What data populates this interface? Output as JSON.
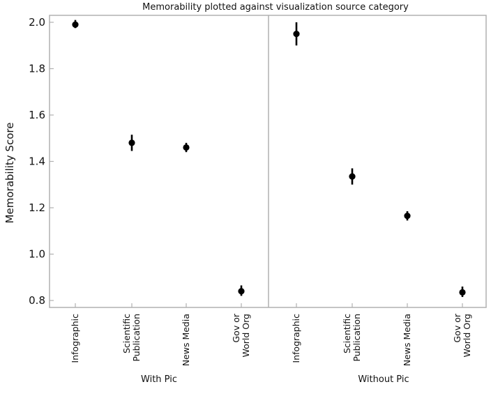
{
  "chart_data": {
    "type": "scatter",
    "title": "Memorability plotted against visualization source category",
    "ylabel": "Memorability Score",
    "ylim": [
      0.77,
      2.03
    ],
    "yticks": [
      "0.8",
      "1.0",
      "1.2",
      "1.4",
      "1.6",
      "1.8",
      "2.0"
    ],
    "ytick_values": [
      0.8,
      1.0,
      1.2,
      1.4,
      1.6,
      1.8,
      2.0
    ],
    "categories": [
      "Infographic",
      "Scientific Publication",
      "News Media",
      "Gov or World Org"
    ],
    "category_lines": [
      [
        "Infographic"
      ],
      [
        "Scientific",
        "Publication"
      ],
      [
        "News Media"
      ],
      [
        "Gov or",
        "World Org"
      ]
    ],
    "grid": false,
    "legend": "none",
    "panels": [
      {
        "name": "With Pic",
        "values": [
          1.99,
          1.48,
          1.46,
          0.84
        ],
        "err_low": [
          1.975,
          1.445,
          1.44,
          0.82
        ],
        "err_high": [
          2.01,
          1.515,
          1.48,
          0.865
        ]
      },
      {
        "name": "Without Pic",
        "values": [
          1.95,
          1.335,
          1.165,
          0.835
        ],
        "err_low": [
          1.9,
          1.3,
          1.145,
          0.815
        ],
        "err_high": [
          2.0,
          1.37,
          1.185,
          0.86
        ]
      }
    ],
    "colors": {
      "marker": "#000000",
      "frame": "#b0b0b0",
      "text": "#111111"
    }
  }
}
